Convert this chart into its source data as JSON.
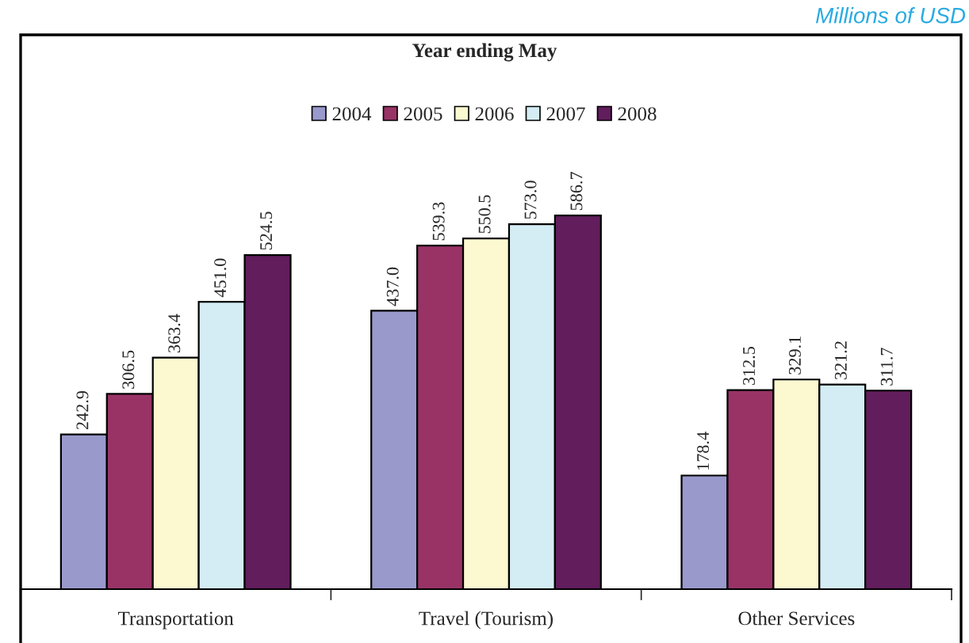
{
  "chart_data": {
    "type": "bar",
    "title": "Year ending May",
    "categories": [
      "Transportation",
      "Travel (Tourism)",
      "Other Services"
    ],
    "series": [
      {
        "name": "2004",
        "color": "#9999cc",
        "values": [
          242.9,
          437.0,
          178.4
        ],
        "value_labels": [
          "242.9",
          "437.0",
          "178.4"
        ]
      },
      {
        "name": "2005",
        "color": "#993366",
        "values": [
          306.5,
          539.3,
          312.5
        ],
        "value_labels": [
          "306.5",
          "539.3",
          "312.5"
        ]
      },
      {
        "name": "2006",
        "color": "#fcf8d0",
        "values": [
          363.4,
          550.5,
          329.1
        ],
        "value_labels": [
          "363.4",
          "550.5",
          "329.1"
        ]
      },
      {
        "name": "2007",
        "color": "#d4ecf4",
        "values": [
          451.0,
          573.0,
          321.2
        ],
        "value_labels": [
          "451.0",
          "573.0",
          "321.2"
        ]
      },
      {
        "name": "2008",
        "color": "#611d5c",
        "values": [
          524.5,
          586.7,
          311.7
        ],
        "value_labels": [
          "524.5",
          "586.7",
          "311.7"
        ]
      }
    ],
    "legend": "top",
    "grid": false,
    "annotations": [
      "Millions of USD"
    ]
  }
}
